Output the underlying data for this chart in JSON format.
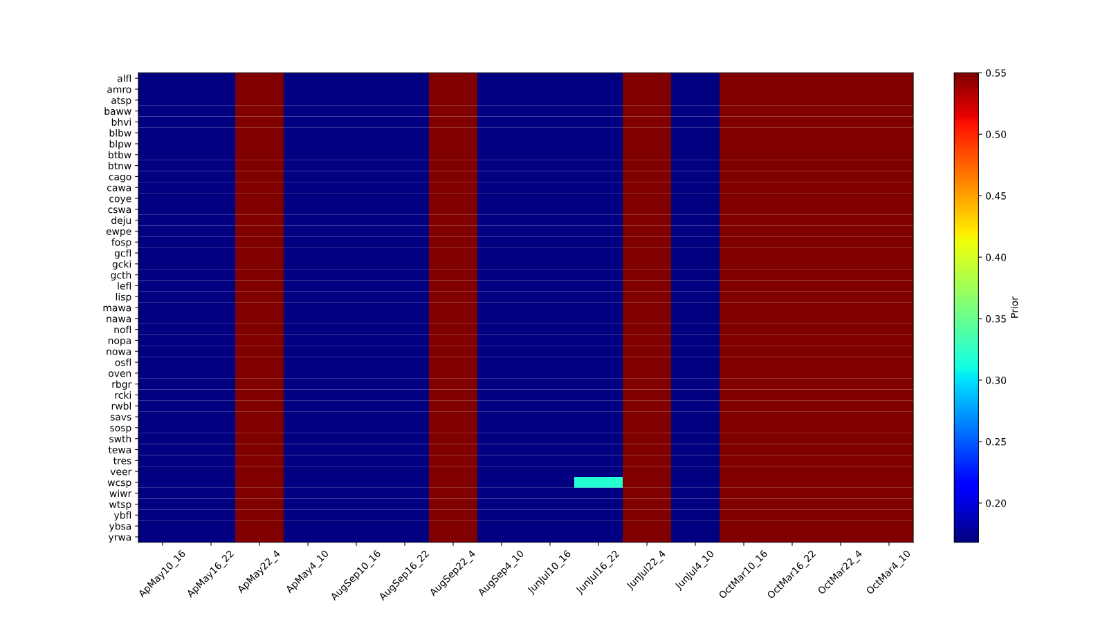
{
  "chart_data": {
    "type": "heatmap",
    "clabel": "Prior",
    "clim": [
      0.168,
      0.55
    ],
    "cticks": [
      {
        "value": 0.2,
        "label": "0.20"
      },
      {
        "value": 0.25,
        "label": "0.25"
      },
      {
        "value": 0.3,
        "label": "0.30"
      },
      {
        "value": 0.35,
        "label": "0.35"
      },
      {
        "value": 0.4,
        "label": "0.40"
      },
      {
        "value": 0.45,
        "label": "0.45"
      },
      {
        "value": 0.5,
        "label": "0.50"
      },
      {
        "value": 0.55,
        "label": "0.55"
      }
    ],
    "categories": [
      "ApMay10_16",
      "ApMay16_22",
      "ApMay22_4",
      "ApMay4_10",
      "AugSep10_16",
      "AugSep16_22",
      "AugSep22_4",
      "AugSep4_10",
      "JunJul10_16",
      "JunJul16_22",
      "JunJul22_4",
      "JunJul4_10",
      "OctMar10_16",
      "OctMar16_22",
      "OctMar22_4",
      "OctMar4_10"
    ],
    "y_categories": [
      "alfl",
      "amro",
      "atsp",
      "baww",
      "bhvi",
      "blbw",
      "blpw",
      "btbw",
      "btnw",
      "cago",
      "cawa",
      "coye",
      "cswa",
      "deju",
      "ewpe",
      "fosp",
      "gcfl",
      "gcki",
      "gcth",
      "lefl",
      "lisp",
      "mawa",
      "nawa",
      "nofl",
      "nopa",
      "nowa",
      "osfl",
      "oven",
      "rbgr",
      "rcki",
      "rwbl",
      "savs",
      "sosp",
      "swth",
      "tewa",
      "tres",
      "veer",
      "wcsp",
      "wiwr",
      "wtsp",
      "ybfl",
      "ybsa",
      "yrwa"
    ],
    "cells": [
      [
        0.168,
        0.168,
        0.55,
        0.168,
        0.168,
        0.168,
        0.55,
        0.168,
        0.168,
        0.168,
        0.55,
        0.168,
        0.55,
        0.55,
        0.55,
        0.55
      ],
      [
        0.168,
        0.168,
        0.55,
        0.168,
        0.168,
        0.168,
        0.55,
        0.168,
        0.168,
        0.168,
        0.55,
        0.168,
        0.55,
        0.55,
        0.55,
        0.55
      ],
      [
        0.168,
        0.168,
        0.55,
        0.168,
        0.168,
        0.168,
        0.55,
        0.168,
        0.168,
        0.168,
        0.55,
        0.168,
        0.55,
        0.55,
        0.55,
        0.55
      ],
      [
        0.168,
        0.168,
        0.55,
        0.168,
        0.168,
        0.168,
        0.55,
        0.168,
        0.168,
        0.168,
        0.55,
        0.168,
        0.55,
        0.55,
        0.55,
        0.55
      ],
      [
        0.168,
        0.168,
        0.55,
        0.168,
        0.168,
        0.168,
        0.55,
        0.168,
        0.168,
        0.168,
        0.55,
        0.168,
        0.55,
        0.55,
        0.55,
        0.55
      ],
      [
        0.168,
        0.168,
        0.55,
        0.168,
        0.168,
        0.168,
        0.55,
        0.168,
        0.168,
        0.168,
        0.55,
        0.168,
        0.55,
        0.55,
        0.55,
        0.55
      ],
      [
        0.168,
        0.168,
        0.55,
        0.168,
        0.168,
        0.168,
        0.55,
        0.168,
        0.168,
        0.168,
        0.55,
        0.168,
        0.55,
        0.55,
        0.55,
        0.55
      ],
      [
        0.168,
        0.168,
        0.55,
        0.168,
        0.168,
        0.168,
        0.55,
        0.168,
        0.168,
        0.168,
        0.55,
        0.168,
        0.55,
        0.55,
        0.55,
        0.55
      ],
      [
        0.168,
        0.168,
        0.55,
        0.168,
        0.168,
        0.168,
        0.55,
        0.168,
        0.168,
        0.168,
        0.55,
        0.168,
        0.55,
        0.55,
        0.55,
        0.55
      ],
      [
        0.168,
        0.168,
        0.55,
        0.168,
        0.168,
        0.168,
        0.55,
        0.168,
        0.168,
        0.168,
        0.55,
        0.168,
        0.55,
        0.55,
        0.55,
        0.55
      ],
      [
        0.168,
        0.168,
        0.55,
        0.168,
        0.168,
        0.168,
        0.55,
        0.168,
        0.168,
        0.168,
        0.55,
        0.168,
        0.55,
        0.55,
        0.55,
        0.55
      ],
      [
        0.168,
        0.168,
        0.55,
        0.168,
        0.168,
        0.168,
        0.55,
        0.168,
        0.168,
        0.168,
        0.55,
        0.168,
        0.55,
        0.55,
        0.55,
        0.55
      ],
      [
        0.168,
        0.168,
        0.55,
        0.168,
        0.168,
        0.168,
        0.55,
        0.168,
        0.168,
        0.168,
        0.55,
        0.168,
        0.55,
        0.55,
        0.55,
        0.55
      ],
      [
        0.168,
        0.168,
        0.55,
        0.168,
        0.168,
        0.168,
        0.55,
        0.168,
        0.168,
        0.168,
        0.55,
        0.168,
        0.55,
        0.55,
        0.55,
        0.55
      ],
      [
        0.168,
        0.168,
        0.55,
        0.168,
        0.168,
        0.168,
        0.55,
        0.168,
        0.168,
        0.168,
        0.55,
        0.168,
        0.55,
        0.55,
        0.55,
        0.55
      ],
      [
        0.168,
        0.168,
        0.55,
        0.168,
        0.168,
        0.168,
        0.55,
        0.168,
        0.168,
        0.168,
        0.55,
        0.168,
        0.55,
        0.55,
        0.55,
        0.55
      ],
      [
        0.168,
        0.168,
        0.55,
        0.168,
        0.168,
        0.168,
        0.55,
        0.168,
        0.168,
        0.168,
        0.55,
        0.168,
        0.55,
        0.55,
        0.55,
        0.55
      ],
      [
        0.168,
        0.168,
        0.55,
        0.168,
        0.168,
        0.168,
        0.55,
        0.168,
        0.168,
        0.168,
        0.55,
        0.168,
        0.55,
        0.55,
        0.55,
        0.55
      ],
      [
        0.168,
        0.168,
        0.55,
        0.168,
        0.168,
        0.168,
        0.55,
        0.168,
        0.168,
        0.168,
        0.55,
        0.168,
        0.55,
        0.55,
        0.55,
        0.55
      ],
      [
        0.168,
        0.168,
        0.55,
        0.168,
        0.168,
        0.168,
        0.55,
        0.168,
        0.168,
        0.168,
        0.55,
        0.168,
        0.55,
        0.55,
        0.55,
        0.55
      ],
      [
        0.168,
        0.168,
        0.55,
        0.168,
        0.168,
        0.168,
        0.55,
        0.168,
        0.168,
        0.168,
        0.55,
        0.168,
        0.55,
        0.55,
        0.55,
        0.55
      ],
      [
        0.168,
        0.168,
        0.55,
        0.168,
        0.168,
        0.168,
        0.55,
        0.168,
        0.168,
        0.168,
        0.55,
        0.168,
        0.55,
        0.55,
        0.55,
        0.55
      ],
      [
        0.168,
        0.168,
        0.55,
        0.168,
        0.168,
        0.168,
        0.55,
        0.168,
        0.168,
        0.168,
        0.55,
        0.168,
        0.55,
        0.55,
        0.55,
        0.55
      ],
      [
        0.168,
        0.168,
        0.55,
        0.168,
        0.168,
        0.168,
        0.55,
        0.168,
        0.168,
        0.168,
        0.55,
        0.168,
        0.55,
        0.55,
        0.55,
        0.55
      ],
      [
        0.168,
        0.168,
        0.55,
        0.168,
        0.168,
        0.168,
        0.55,
        0.168,
        0.168,
        0.168,
        0.55,
        0.168,
        0.55,
        0.55,
        0.55,
        0.55
      ],
      [
        0.168,
        0.168,
        0.55,
        0.168,
        0.168,
        0.168,
        0.55,
        0.168,
        0.168,
        0.168,
        0.55,
        0.168,
        0.55,
        0.55,
        0.55,
        0.55
      ],
      [
        0.168,
        0.168,
        0.55,
        0.168,
        0.168,
        0.168,
        0.55,
        0.168,
        0.168,
        0.168,
        0.55,
        0.168,
        0.55,
        0.55,
        0.55,
        0.55
      ],
      [
        0.168,
        0.168,
        0.55,
        0.168,
        0.168,
        0.168,
        0.55,
        0.168,
        0.168,
        0.168,
        0.55,
        0.168,
        0.55,
        0.55,
        0.55,
        0.55
      ],
      [
        0.168,
        0.168,
        0.55,
        0.168,
        0.168,
        0.168,
        0.55,
        0.168,
        0.168,
        0.168,
        0.55,
        0.168,
        0.55,
        0.55,
        0.55,
        0.55
      ],
      [
        0.168,
        0.168,
        0.55,
        0.168,
        0.168,
        0.168,
        0.55,
        0.168,
        0.168,
        0.168,
        0.55,
        0.168,
        0.55,
        0.55,
        0.55,
        0.55
      ],
      [
        0.168,
        0.168,
        0.55,
        0.168,
        0.168,
        0.168,
        0.55,
        0.168,
        0.168,
        0.168,
        0.55,
        0.168,
        0.55,
        0.55,
        0.55,
        0.55
      ],
      [
        0.168,
        0.168,
        0.55,
        0.168,
        0.168,
        0.168,
        0.55,
        0.168,
        0.168,
        0.168,
        0.55,
        0.168,
        0.55,
        0.55,
        0.55,
        0.55
      ],
      [
        0.168,
        0.168,
        0.55,
        0.168,
        0.168,
        0.168,
        0.55,
        0.168,
        0.168,
        0.168,
        0.55,
        0.168,
        0.55,
        0.55,
        0.55,
        0.55
      ],
      [
        0.168,
        0.168,
        0.55,
        0.168,
        0.168,
        0.168,
        0.55,
        0.168,
        0.168,
        0.168,
        0.55,
        0.168,
        0.55,
        0.55,
        0.55,
        0.55
      ],
      [
        0.168,
        0.168,
        0.55,
        0.168,
        0.168,
        0.168,
        0.55,
        0.168,
        0.168,
        0.168,
        0.55,
        0.168,
        0.55,
        0.55,
        0.55,
        0.55
      ],
      [
        0.168,
        0.168,
        0.55,
        0.168,
        0.168,
        0.168,
        0.55,
        0.168,
        0.168,
        0.168,
        0.55,
        0.168,
        0.55,
        0.55,
        0.55,
        0.55
      ],
      [
        0.168,
        0.168,
        0.55,
        0.168,
        0.168,
        0.168,
        0.55,
        0.168,
        0.168,
        0.168,
        0.55,
        0.168,
        0.55,
        0.55,
        0.55,
        0.55
      ],
      [
        0.168,
        0.168,
        0.55,
        0.168,
        0.168,
        0.168,
        0.55,
        0.168,
        0.168,
        0.32,
        0.55,
        0.168,
        0.55,
        0.55,
        0.55,
        0.55
      ],
      [
        0.168,
        0.168,
        0.55,
        0.168,
        0.168,
        0.168,
        0.55,
        0.168,
        0.168,
        0.168,
        0.55,
        0.168,
        0.55,
        0.55,
        0.55,
        0.55
      ],
      [
        0.168,
        0.168,
        0.55,
        0.168,
        0.168,
        0.168,
        0.55,
        0.168,
        0.168,
        0.168,
        0.55,
        0.168,
        0.55,
        0.55,
        0.55,
        0.55
      ],
      [
        0.168,
        0.168,
        0.55,
        0.168,
        0.168,
        0.168,
        0.55,
        0.168,
        0.168,
        0.168,
        0.55,
        0.168,
        0.55,
        0.55,
        0.55,
        0.55
      ],
      [
        0.168,
        0.168,
        0.55,
        0.168,
        0.168,
        0.168,
        0.55,
        0.168,
        0.168,
        0.168,
        0.55,
        0.168,
        0.55,
        0.55,
        0.55,
        0.55
      ],
      [
        0.168,
        0.168,
        0.55,
        0.168,
        0.168,
        0.168,
        0.55,
        0.168,
        0.168,
        0.168,
        0.55,
        0.168,
        0.55,
        0.55,
        0.55,
        0.55
      ]
    ]
  }
}
